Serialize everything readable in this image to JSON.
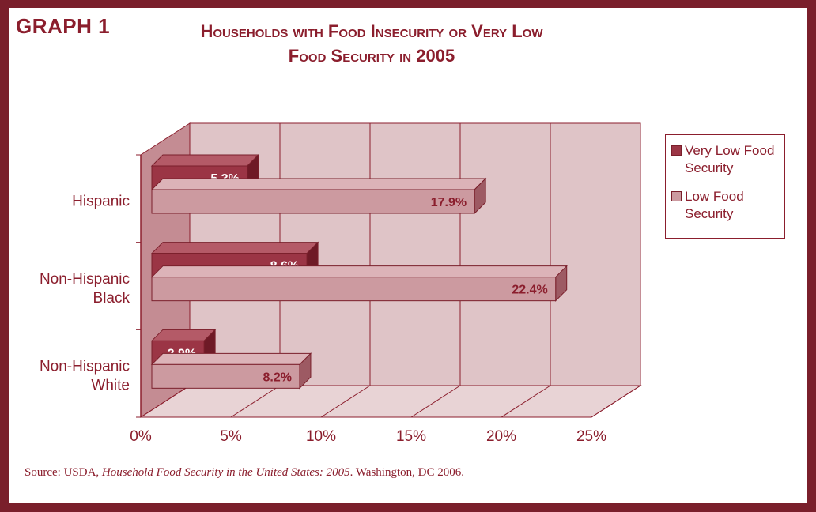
{
  "graph_label": "GRAPH 1",
  "title_line1": "Households with Food Insecurity or Very Low",
  "title_line2": "Food Security in 2005",
  "source": {
    "prefix": "Source:  USDA, ",
    "italic": "Household Food Security in the United States: 2005",
    "suffix": ".  Washington, DC 2006."
  },
  "colors": {
    "frame": "#7a1f2b",
    "text": "#8b1e2d",
    "very_low_bar": "#9b3545",
    "low_bar": "#cc9aa0",
    "plot_bg": "#dfc4c7"
  },
  "chart_data": {
    "type": "bar",
    "orientation": "horizontal",
    "categories": [
      "Hispanic",
      "Non-Hispanic Black",
      "Non-Hispanic White"
    ],
    "category_lines": [
      [
        "Hispanic"
      ],
      [
        "Non-Hispanic",
        "Black"
      ],
      [
        "Non-Hispanic",
        "White"
      ]
    ],
    "series": [
      {
        "name": "Very Low Food Security",
        "values": [
          5.3,
          8.6,
          2.9
        ],
        "labels": [
          "5.3%",
          "8.6%",
          "2.9%"
        ]
      },
      {
        "name": "Low Food Security",
        "values": [
          17.9,
          22.4,
          8.2
        ],
        "labels": [
          "17.9%",
          "22.4%",
          "8.2%"
        ]
      }
    ],
    "xlim": [
      0,
      25
    ],
    "xticks": [
      0,
      5,
      10,
      15,
      20,
      25
    ],
    "xtick_labels": [
      "0%",
      "5%",
      "10%",
      "15%",
      "20%",
      "25%"
    ],
    "grid": true,
    "legend": "right"
  },
  "legend": {
    "very_low_line1": "Very Low Food",
    "very_low_line2": "Security",
    "low_line1": "Low Food",
    "low_line2": "Security"
  }
}
